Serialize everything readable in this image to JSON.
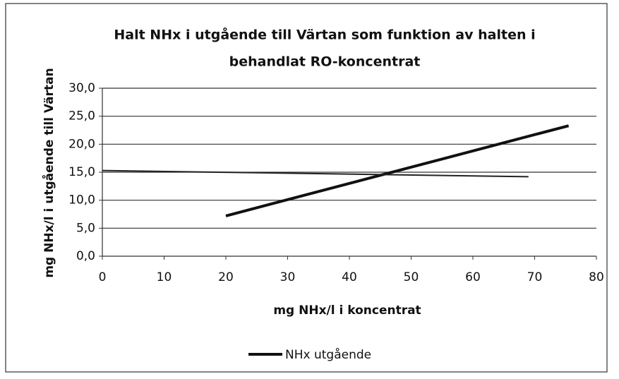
{
  "chart_data": {
    "type": "line",
    "title": "Halt NHx i  utgående till Värtan som funktion av halten i",
    "subtitle": "behandlat RO-koncentrat",
    "x_label": "mg NHx/l i koncentrat",
    "y_label": "mg NHx/l i utgående till Värtan",
    "series": [
      {
        "name": "NHx utgående",
        "color": "#111111",
        "width": 4,
        "x": [
          20,
          75.5
        ],
        "values": [
          7.2,
          23.3
        ]
      },
      {
        "color": "#222222",
        "width": 2,
        "x": [
          0,
          69
        ],
        "values": [
          15.3,
          14.2
        ]
      }
    ],
    "xlim": [
      0,
      80
    ],
    "xticks": [
      0,
      10,
      20,
      30,
      40,
      50,
      60,
      70,
      80
    ],
    "ylim": [
      0,
      30
    ],
    "yticks": [
      {
        "value": 0,
        "label": "0,0"
      },
      {
        "value": 5,
        "label": "5,0"
      },
      {
        "value": 10,
        "label": "10,0"
      },
      {
        "value": 15,
        "label": "15,0"
      },
      {
        "value": 20,
        "label": "20,0"
      },
      {
        "value": 25,
        "label": "25,0"
      },
      {
        "value": 30,
        "label": "30,0"
      }
    ],
    "grid": true,
    "legend": "bottom"
  }
}
